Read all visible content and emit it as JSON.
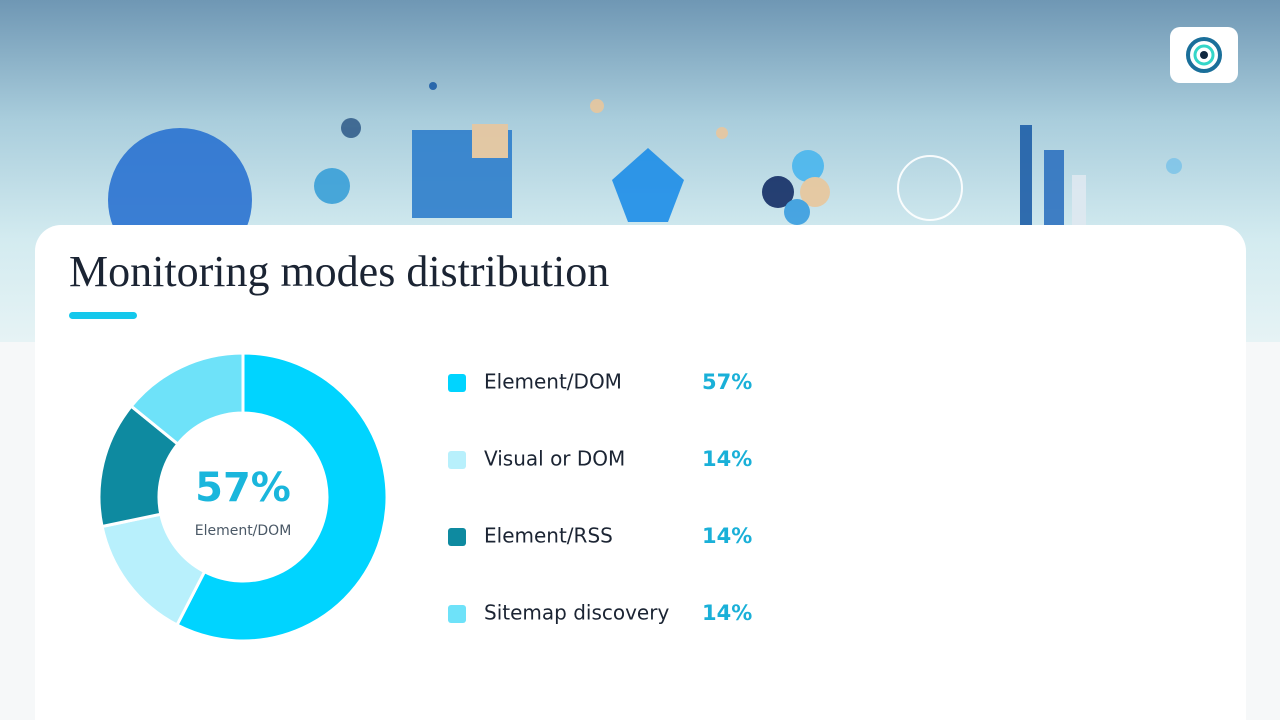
{
  "chart_data": {
    "type": "pie",
    "title": "Monitoring modes distribution",
    "categories": [
      "Element/DOM",
      "Visual or DOM",
      "Element/RSS",
      "Sitemap discovery"
    ],
    "values": [
      57,
      14,
      14,
      14
    ],
    "value_labels": [
      "57%",
      "14%",
      "14%",
      "14%"
    ],
    "colors": [
      "#00d4ff",
      "#b8f0fc",
      "#0e8aa0",
      "#6ee2f9"
    ]
  }
}
